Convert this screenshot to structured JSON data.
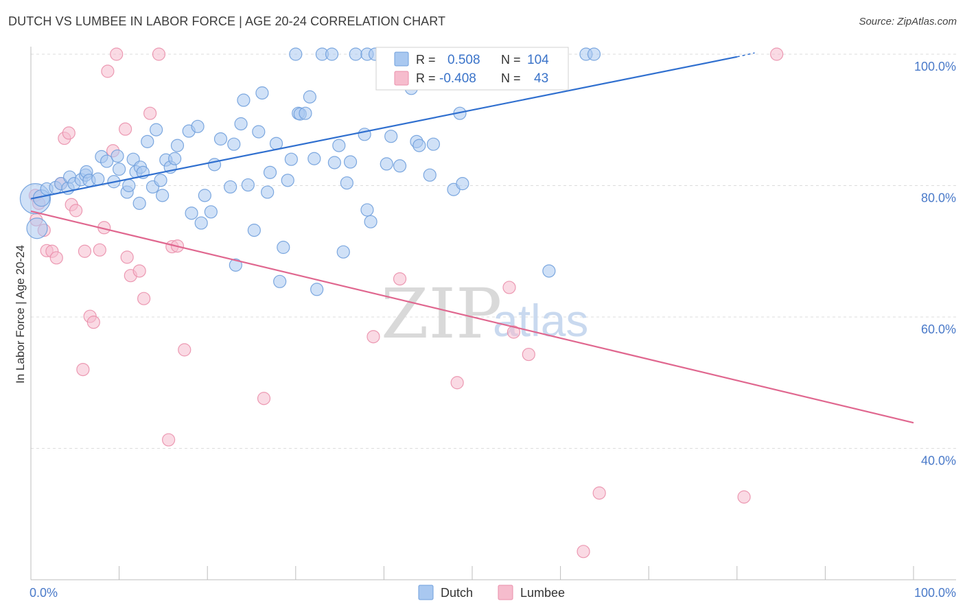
{
  "header": {
    "title": "DUTCH VS LUMBEE IN LABOR FORCE | AGE 20-24 CORRELATION CHART",
    "source": "Source: ZipAtlas.com"
  },
  "watermark": {
    "zip": "ZIP",
    "atlas": "atlas"
  },
  "colors": {
    "dutch_fill": "#a9c8f0",
    "dutch_stroke": "#6f9fdc",
    "dutch_line": "#2f6fcf",
    "lumbee_fill": "#f6bccd",
    "lumbee_stroke": "#ea8fab",
    "lumbee_line": "#e0678f",
    "axis_label": "#4a7ac9",
    "grid": "#dcdcdc"
  },
  "stats_box": {
    "rows": [
      {
        "r_label": "R =",
        "r_value": "0.508",
        "n_label": "N =",
        "n_value": "104",
        "series": "Dutch"
      },
      {
        "r_label": "R =",
        "r_value": "-0.408",
        "n_label": "N =",
        "n_value": "43",
        "series": "Lumbee"
      }
    ]
  },
  "chart_data": {
    "type": "scatter",
    "title": "DUTCH VS LUMBEE IN LABOR FORCE | AGE 20-24 CORRELATION CHART",
    "xlabel": "",
    "ylabel": "In Labor Force | Age 20-24",
    "xlim": [
      0,
      100
    ],
    "ylim": [
      20,
      103
    ],
    "x_tick_labels": [
      {
        "value": 0,
        "label": "0.0%"
      },
      {
        "value": 100,
        "label": "100.0%"
      }
    ],
    "y_tick_labels": [
      {
        "value": 100,
        "label": "100.0%"
      },
      {
        "value": 80,
        "label": "80.0%"
      },
      {
        "value": 60,
        "label": "60.0%"
      },
      {
        "value": 40,
        "label": "40.0%"
      }
    ],
    "grid": "horizontal dashed",
    "legend": {
      "position": "bottom-center",
      "entries": [
        "Dutch",
        "Lumbee"
      ]
    },
    "series": [
      {
        "name": "Dutch",
        "r": 0.508,
        "n": 104,
        "trend": {
          "x": [
            0,
            80
          ],
          "y": [
            78.0,
            99.6
          ],
          "dashed_extension_to": [
            82,
            100.2
          ]
        },
        "points": [
          [
            0.5,
            78
          ],
          [
            0.7,
            73.5
          ],
          [
            1.2,
            78.1
          ],
          [
            1.8,
            79.5
          ],
          [
            2.8,
            79.7
          ],
          [
            3.4,
            80.3
          ],
          [
            4.2,
            79.6
          ],
          [
            4.4,
            81.3
          ],
          [
            4.9,
            80.3
          ],
          [
            5.7,
            80.9
          ],
          [
            6.2,
            81.6
          ],
          [
            6.3,
            82.1
          ],
          [
            6.6,
            80.8
          ],
          [
            7.6,
            81.0
          ],
          [
            8.0,
            84.4
          ],
          [
            8.6,
            83.7
          ],
          [
            9.4,
            80.6
          ],
          [
            9.8,
            84.5
          ],
          [
            10.0,
            82.5
          ],
          [
            10.9,
            79.0
          ],
          [
            11.1,
            80.0
          ],
          [
            11.6,
            84.0
          ],
          [
            11.9,
            82.1
          ],
          [
            12.3,
            77.3
          ],
          [
            12.4,
            82.8
          ],
          [
            12.7,
            82.0
          ],
          [
            13.2,
            86.7
          ],
          [
            13.8,
            79.8
          ],
          [
            14.2,
            88.5
          ],
          [
            14.7,
            80.8
          ],
          [
            15.3,
            83.9
          ],
          [
            15.8,
            82.8
          ],
          [
            16.3,
            84.1
          ],
          [
            16.6,
            86.1
          ],
          [
            17.9,
            88.3
          ],
          [
            18.2,
            75.8
          ],
          [
            18.9,
            89.0
          ],
          [
            19.3,
            74.3
          ],
          [
            19.7,
            78.5
          ],
          [
            20.4,
            76.0
          ],
          [
            20.8,
            83.2
          ],
          [
            21.5,
            87.1
          ],
          [
            22.6,
            79.8
          ],
          [
            23.0,
            86.3
          ],
          [
            23.8,
            89.4
          ],
          [
            24.1,
            93.0
          ],
          [
            24.6,
            80.1
          ],
          [
            25.3,
            73.2
          ],
          [
            25.8,
            88.2
          ],
          [
            26.2,
            94.1
          ],
          [
            26.8,
            79.0
          ],
          [
            27.1,
            82.0
          ],
          [
            27.8,
            86.4
          ],
          [
            28.2,
            65.4
          ],
          [
            28.6,
            70.6
          ],
          [
            29.1,
            80.8
          ],
          [
            29.5,
            84.0
          ],
          [
            30.3,
            91.0
          ],
          [
            30.5,
            90.9
          ],
          [
            31.1,
            91.0
          ],
          [
            31.6,
            93.5
          ],
          [
            32.1,
            84.1
          ],
          [
            32.4,
            64.2
          ],
          [
            34.4,
            83.5
          ],
          [
            34.9,
            86.1
          ],
          [
            35.4,
            69.9
          ],
          [
            35.8,
            80.4
          ],
          [
            36.2,
            83.6
          ],
          [
            37.8,
            87.8
          ],
          [
            38.1,
            76.3
          ],
          [
            38.5,
            74.5
          ],
          [
            40.3,
            83.3
          ],
          [
            40.8,
            87.5
          ],
          [
            41.8,
            83.0
          ],
          [
            43.7,
            86.7
          ],
          [
            44.0,
            86.1
          ],
          [
            45.2,
            81.6
          ],
          [
            45.6,
            86.3
          ],
          [
            47.9,
            79.4
          ],
          [
            48.6,
            91.0
          ],
          [
            48.9,
            80.3
          ],
          [
            58.7,
            67.0
          ],
          [
            30.0,
            100
          ],
          [
            33.0,
            100
          ],
          [
            34.1,
            100
          ],
          [
            36.8,
            100
          ],
          [
            38.1,
            100
          ],
          [
            39.0,
            100
          ],
          [
            40.5,
            100
          ],
          [
            43.6,
            100
          ],
          [
            44.8,
            100
          ],
          [
            45.9,
            100
          ],
          [
            47.4,
            100
          ],
          [
            50.5,
            100
          ],
          [
            51.3,
            100
          ],
          [
            52.3,
            100
          ],
          [
            53.8,
            100
          ],
          [
            56.5,
            100
          ],
          [
            59.3,
            100
          ],
          [
            62.9,
            100
          ],
          [
            63.8,
            100
          ],
          [
            43.1,
            94.8
          ],
          [
            23.2,
            67.9
          ],
          [
            14.9,
            78.5
          ]
        ]
      },
      {
        "name": "Lumbee",
        "r": -0.408,
        "n": 43,
        "trend": {
          "x": [
            0,
            100
          ],
          "y": [
            76.1,
            43.9
          ]
        },
        "points": [
          [
            0.5,
            78.5
          ],
          [
            0.6,
            74.8
          ],
          [
            1.5,
            73.2
          ],
          [
            1.8,
            70.1
          ],
          [
            2.4,
            70.0
          ],
          [
            2.9,
            69.0
          ],
          [
            3.4,
            80.3
          ],
          [
            3.8,
            87.2
          ],
          [
            4.3,
            88.0
          ],
          [
            4.6,
            77.1
          ],
          [
            5.1,
            76.2
          ],
          [
            5.9,
            52.0
          ],
          [
            6.1,
            70.0
          ],
          [
            6.7,
            60.1
          ],
          [
            7.1,
            59.2
          ],
          [
            7.8,
            70.2
          ],
          [
            8.3,
            73.6
          ],
          [
            8.7,
            97.4
          ],
          [
            9.3,
            85.3
          ],
          [
            9.7,
            100
          ],
          [
            10.7,
            88.6
          ],
          [
            10.9,
            69.1
          ],
          [
            11.3,
            66.3
          ],
          [
            12.3,
            67.0
          ],
          [
            12.8,
            62.8
          ],
          [
            13.5,
            91.0
          ],
          [
            14.5,
            100
          ],
          [
            16.0,
            70.7
          ],
          [
            16.6,
            70.8
          ],
          [
            17.4,
            55.0
          ],
          [
            26.4,
            47.6
          ],
          [
            15.6,
            41.3
          ],
          [
            38.8,
            57.0
          ],
          [
            41.8,
            65.8
          ],
          [
            48.3,
            50.0
          ],
          [
            54.2,
            64.5
          ],
          [
            54.7,
            57.7
          ],
          [
            56.4,
            54.3
          ],
          [
            64.4,
            33.2
          ],
          [
            80.8,
            32.6
          ],
          [
            62.6,
            24.3
          ],
          [
            84.5,
            100
          ],
          [
            0.9,
            77.3
          ]
        ]
      }
    ]
  }
}
